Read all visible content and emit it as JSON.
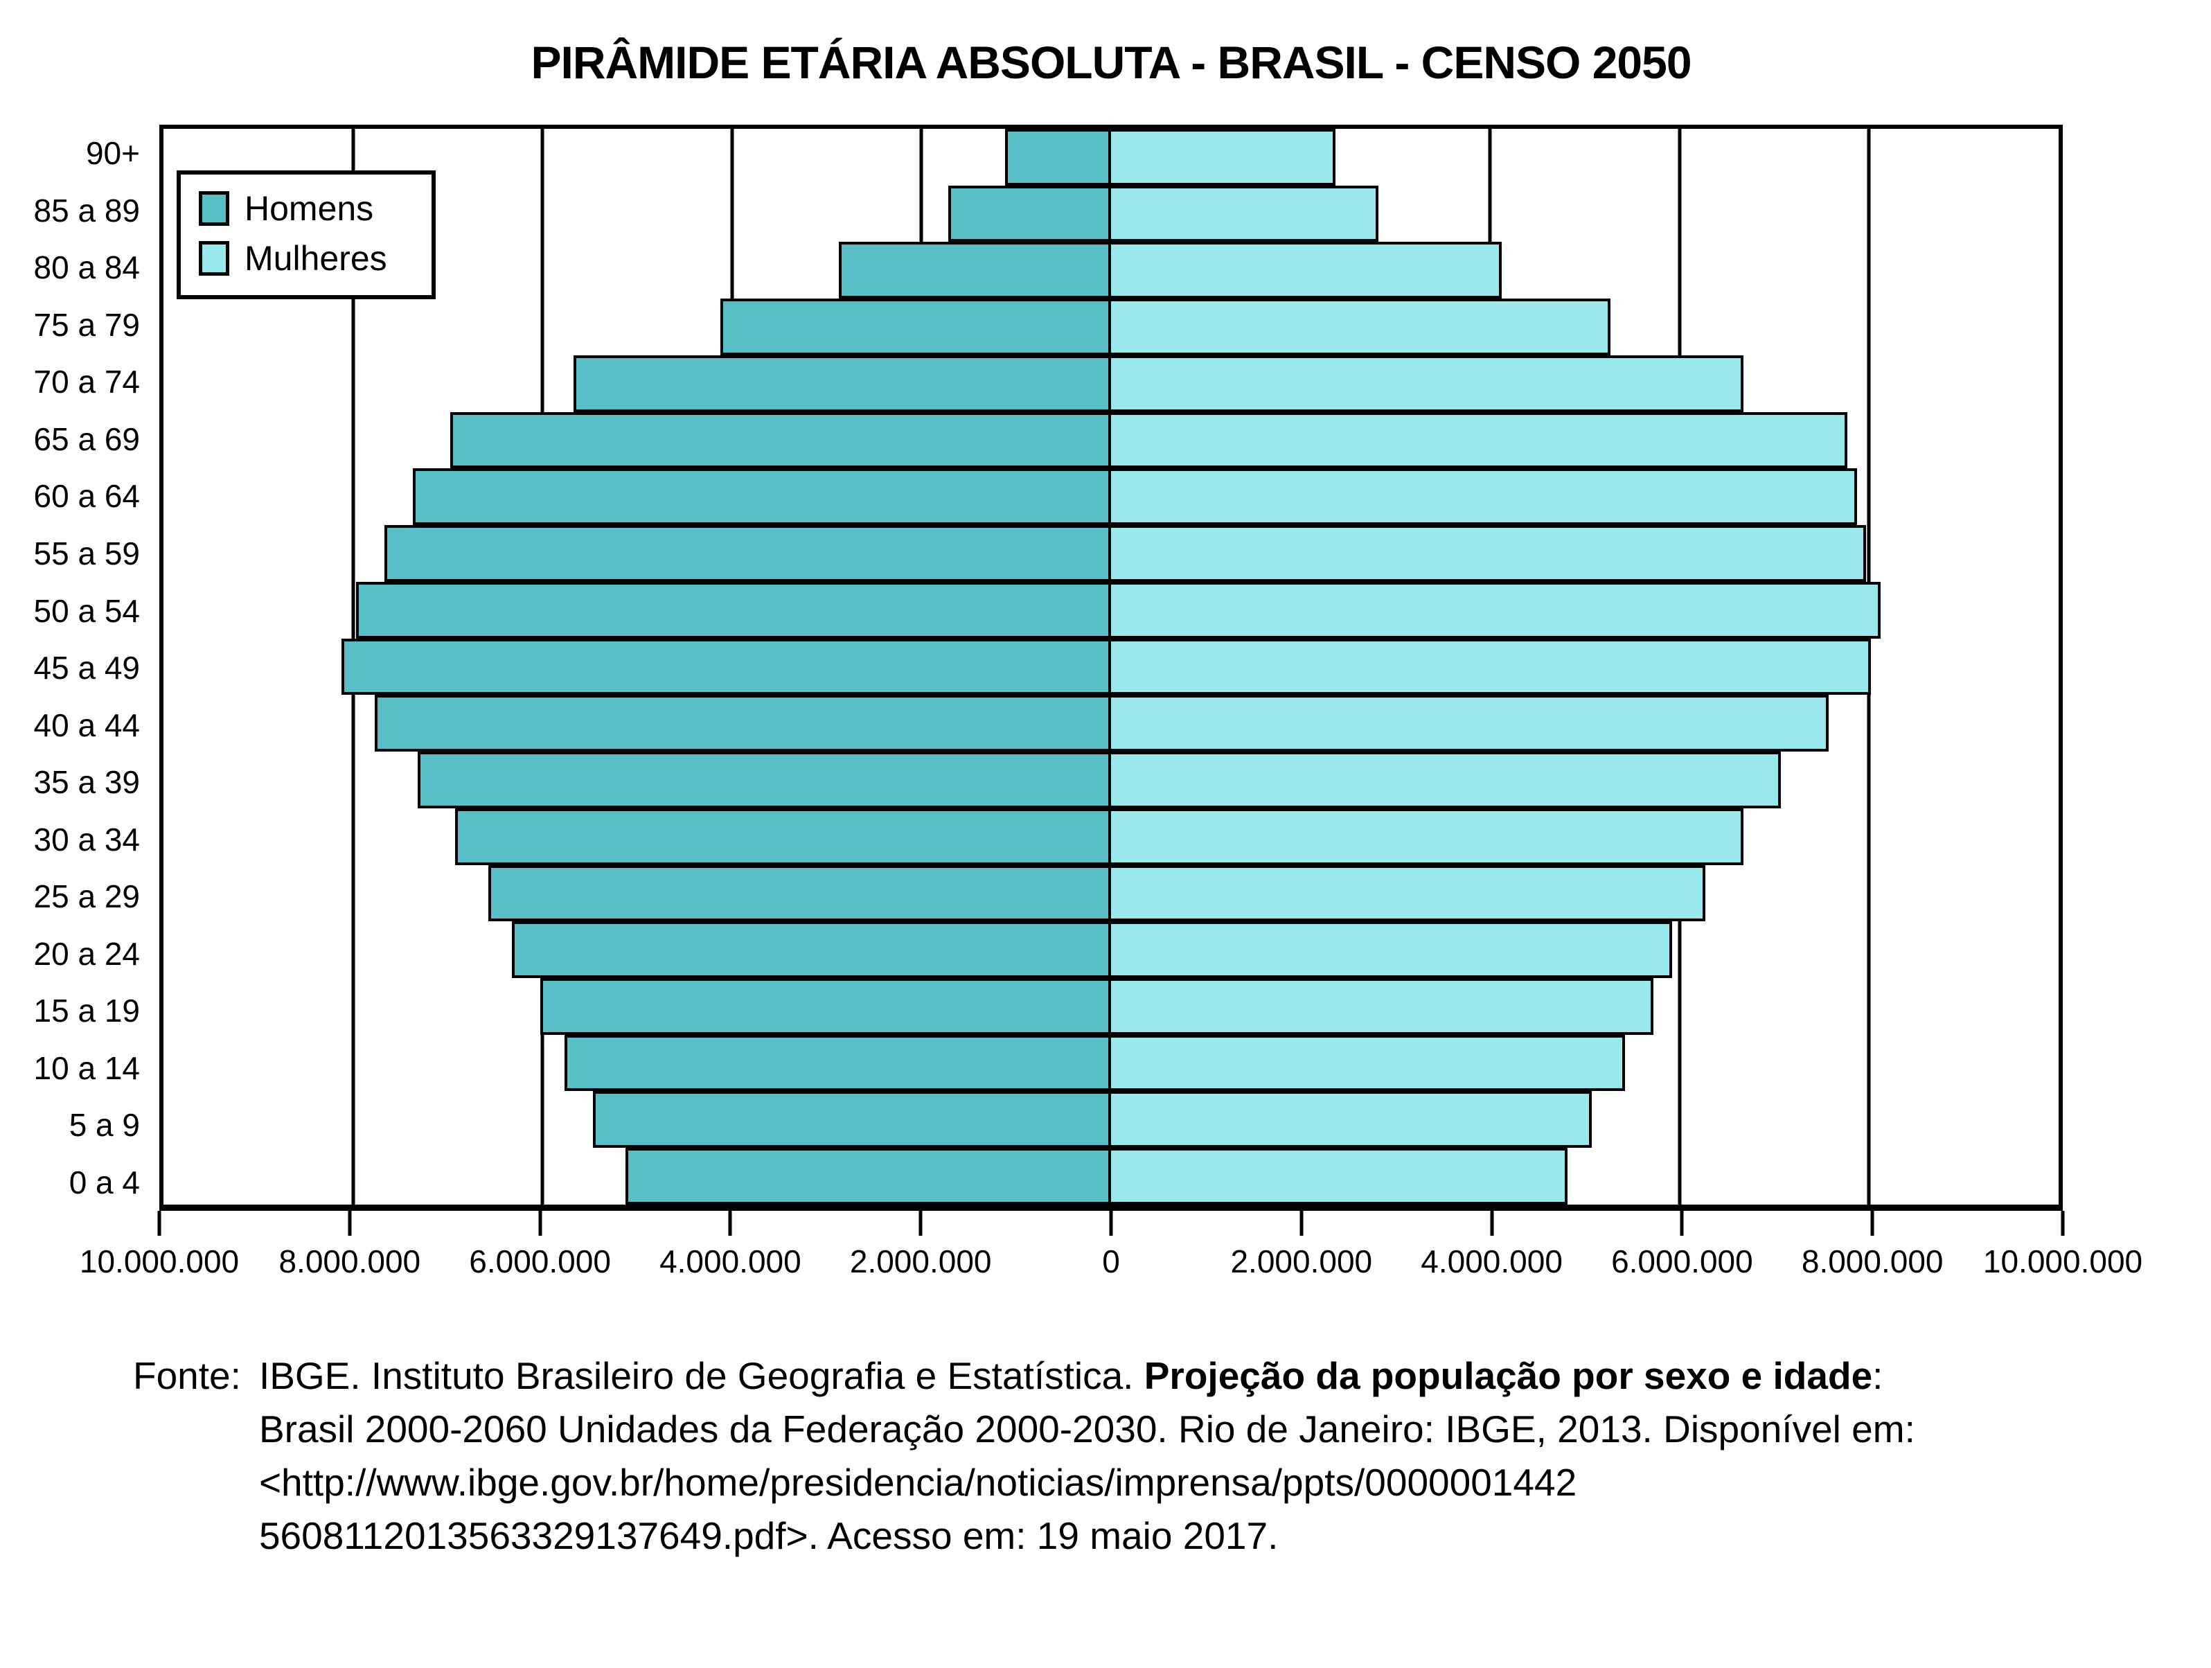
{
  "title": "PIRÂMIDE ETÁRIA ABSOLUTA - BRASIL - CENSO 2050",
  "legend": {
    "homens": "Homens",
    "mulheres": "Mulheres"
  },
  "colors": {
    "homens": "#58bfc9",
    "mulheres": "#99e9ec",
    "axis": "#000000",
    "background": "#ffffff"
  },
  "x_axis": {
    "labels": [
      "10.000.000",
      "8.000.000",
      "6.000.000",
      "4.000.000",
      "2.000.000",
      "0",
      "2.000.000",
      "4.000.000",
      "6.000.000",
      "8.000.000",
      "10.000.000"
    ]
  },
  "chart_data": {
    "type": "bar",
    "subtype": "population-pyramid",
    "title": "PIRÂMIDE ETÁRIA ABSOLUTA - BRASIL - CENSO 2050",
    "categories": [
      "90+",
      "85 a 89",
      "80 a 84",
      "75 a 79",
      "70 a 74",
      "65 a 69",
      "60 a 64",
      "55 a 59",
      "50 a 54",
      "45 a 49",
      "40 a 44",
      "35 a 39",
      "30 a 34",
      "25 a 29",
      "20 a 24",
      "15 a 19",
      "10 a 14",
      "5 a 9",
      "0 a 4"
    ],
    "series": [
      {
        "name": "Homens",
        "side": "left",
        "color": "#58bfc9",
        "values": [
          1150000,
          1750000,
          2900000,
          4150000,
          5700000,
          7000000,
          7400000,
          7700000,
          8000000,
          8150000,
          7800000,
          7350000,
          6950000,
          6600000,
          6350000,
          6050000,
          5800000,
          5500000,
          5150000
        ]
      },
      {
        "name": "Mulheres",
        "side": "right",
        "color": "#99e9ec",
        "values": [
          2400000,
          2850000,
          4150000,
          5300000,
          6700000,
          7800000,
          7900000,
          8000000,
          8150000,
          8050000,
          7600000,
          7100000,
          6700000,
          6300000,
          5950000,
          5750000,
          5450000,
          5100000,
          4850000
        ]
      }
    ],
    "xlim": [
      -10000000,
      10000000
    ],
    "x_tick_step": 2000000,
    "grid": true,
    "legend_position": "top-left"
  },
  "footer": {
    "label": "Fonte:",
    "line1_pre": "IBGE. Instituto Brasileiro de Geografia e Estatística. ",
    "line1_bold": "Projeção da população por sexo e idade",
    "line1_post": ":",
    "line2": "Brasil 2000-2060 Unidades da Federação 2000-2030. Rio de Janeiro: IBGE, 2013. Disponível em:",
    "line3": "<http://www.ibge.gov.br/home/presidencia/noticias/imprensa/ppts/0000001442",
    "line4": "5608112013563329137649.pdf>. Acesso em: 19 maio 2017."
  }
}
